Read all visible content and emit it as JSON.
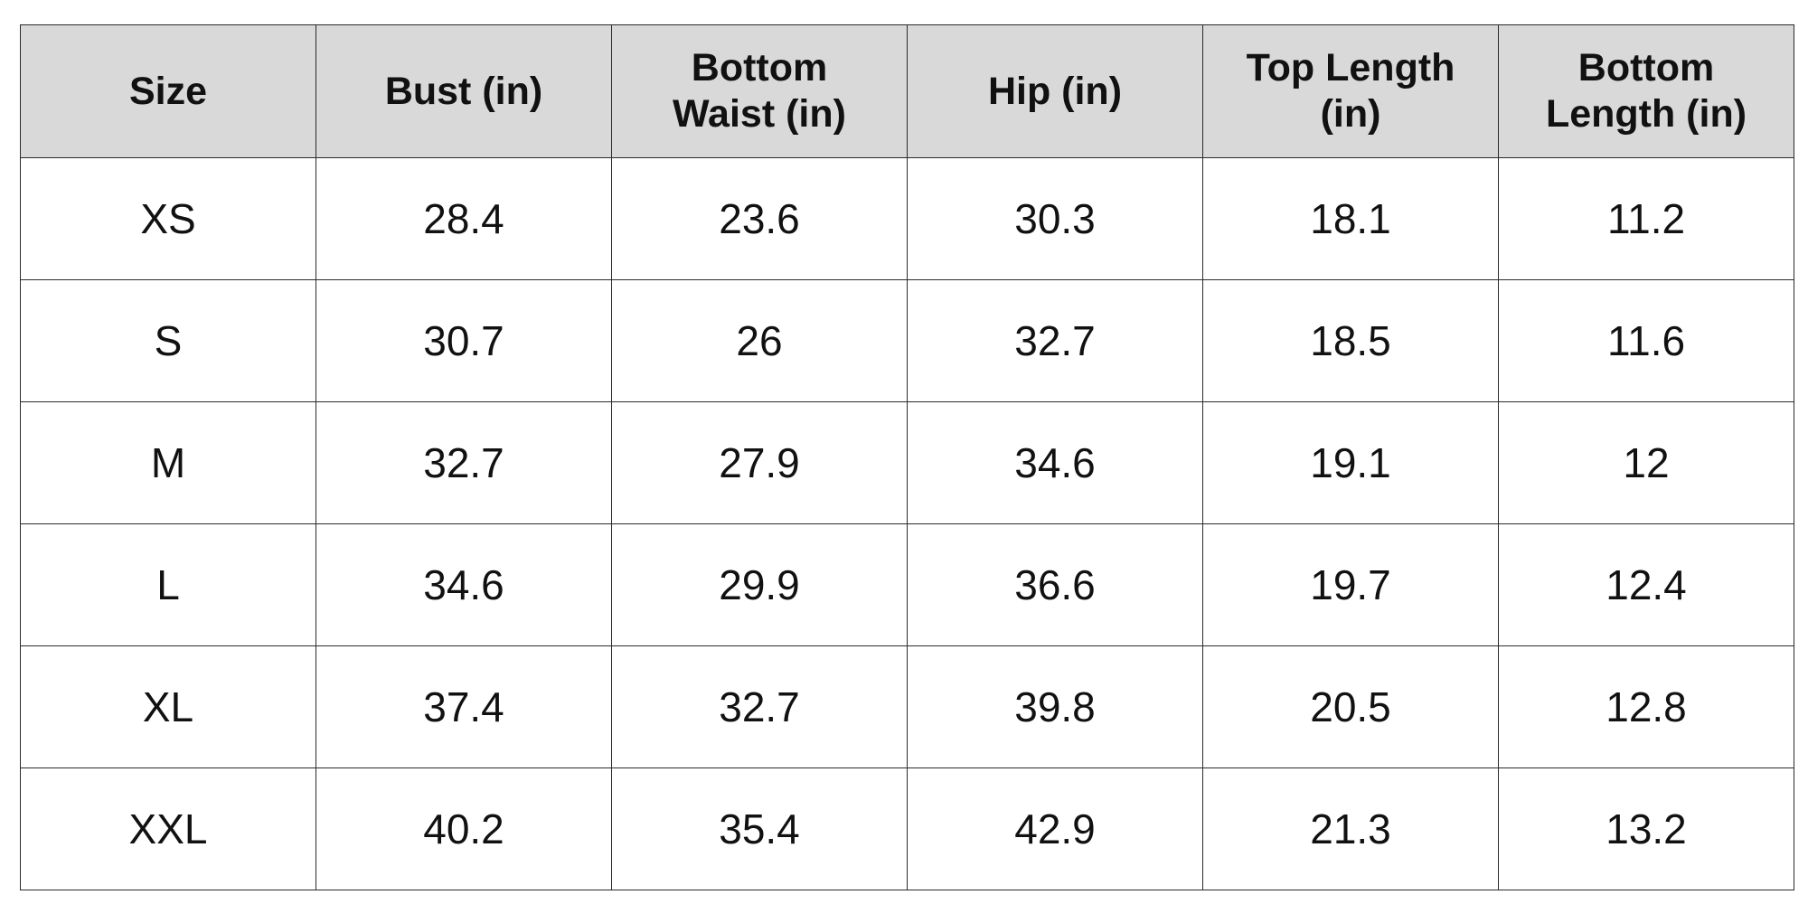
{
  "size_chart": {
    "columns": [
      "Size",
      "Bust (in)",
      "Bottom Waist (in)",
      "Hip (in)",
      "Top Length (in)",
      "Bottom Length (in)"
    ],
    "rows": [
      [
        "XS",
        "28.4",
        "23.6",
        "30.3",
        "18.1",
        "11.2"
      ],
      [
        "S",
        "30.7",
        "26",
        "32.7",
        "18.5",
        "11.6"
      ],
      [
        "M",
        "32.7",
        "27.9",
        "34.6",
        "19.1",
        "12"
      ],
      [
        "L",
        "34.6",
        "29.9",
        "36.6",
        "19.7",
        "12.4"
      ],
      [
        "XL",
        "37.4",
        "32.7",
        "39.8",
        "20.5",
        "12.8"
      ],
      [
        "XXL",
        "40.2",
        "35.4",
        "42.9",
        "21.3",
        "13.2"
      ]
    ],
    "header_background": "#d9d9d9",
    "border_color": "#2b2b2b"
  }
}
